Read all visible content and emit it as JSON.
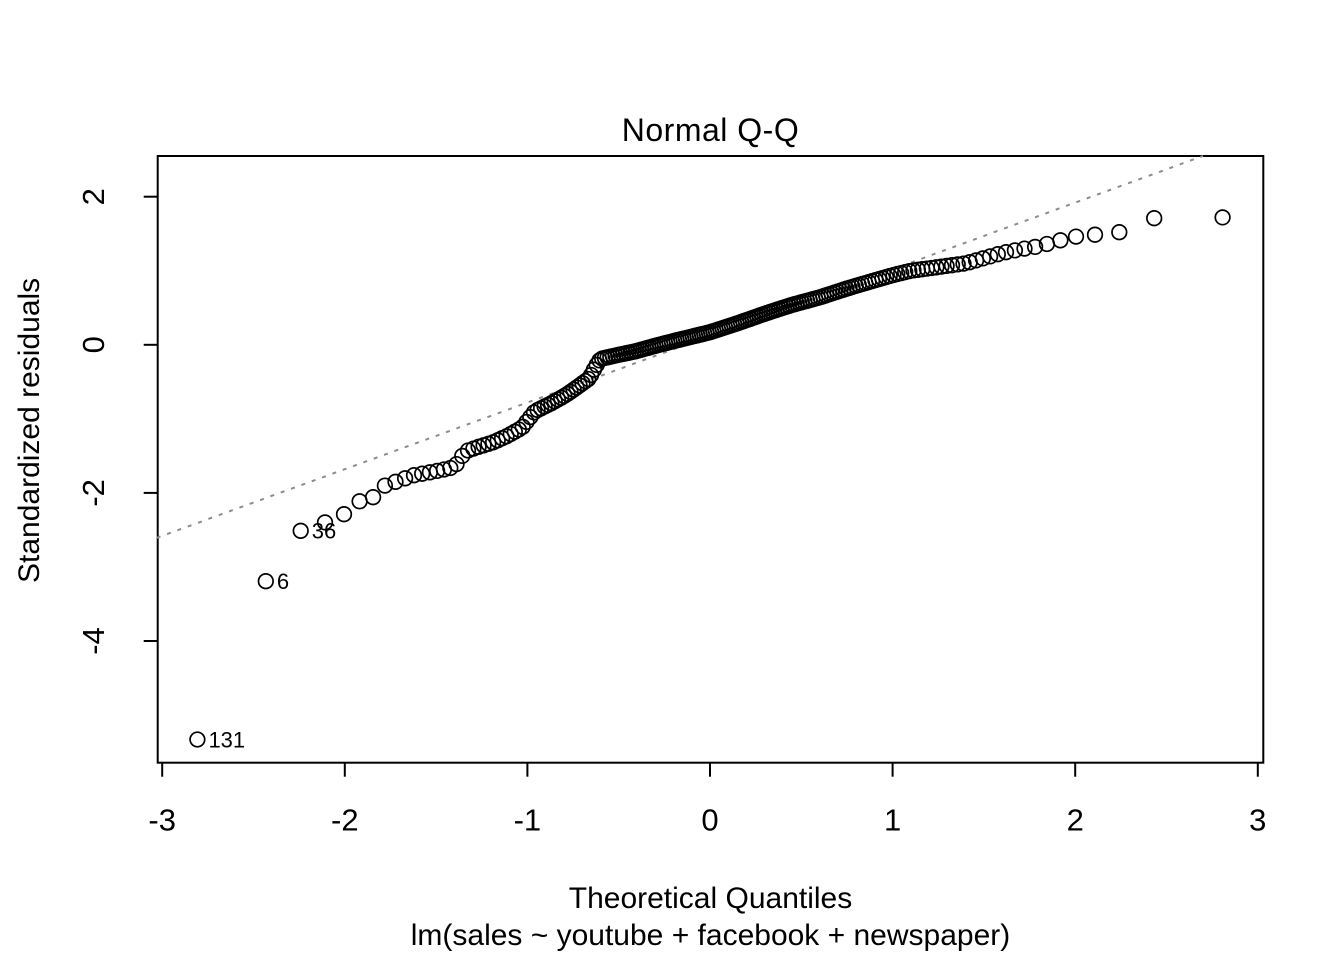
{
  "chart_data": {
    "type": "scatter",
    "title": "Normal Q-Q",
    "xlabel": "Theoretical Quantiles",
    "ylabel": "Standardized residuals",
    "model_caption": "lm(sales ~ youtube + facebook + newspaper)",
    "x_axis": {
      "ticks": [
        -3,
        -2,
        -1,
        0,
        1,
        2,
        3
      ],
      "range": [
        -3.03,
        3.03
      ]
    },
    "y_axis": {
      "ticks": [
        2,
        0,
        -2,
        -4
      ],
      "range": [
        -5.64,
        2.55
      ]
    },
    "grid": false,
    "legend": null,
    "n_points": 200,
    "sample_rule": "x_i = qnorm((i - 0.5)/200) for i = 1..200; y_i = linear interpolation of quantile_curve at x_i",
    "quantile_curve": [
      [
        -2.807,
        -5.33
      ],
      [
        -2.432,
        -3.19
      ],
      [
        -2.241,
        -2.51
      ],
      [
        -2.17,
        -2.46
      ],
      [
        -2.1,
        -2.39
      ],
      [
        -2.01,
        -2.3
      ],
      [
        -1.93,
        -2.12
      ],
      [
        -1.85,
        -2.07
      ],
      [
        -1.78,
        -1.9
      ],
      [
        -1.7,
        -1.83
      ],
      [
        -1.62,
        -1.76
      ],
      [
        -1.53,
        -1.72
      ],
      [
        -1.45,
        -1.68
      ],
      [
        -1.4,
        -1.65
      ],
      [
        -1.37,
        -1.55
      ],
      [
        -1.34,
        -1.44
      ],
      [
        -1.27,
        -1.38
      ],
      [
        -1.19,
        -1.32
      ],
      [
        -1.11,
        -1.23
      ],
      [
        -1.03,
        -1.12
      ],
      [
        -0.96,
        -0.9
      ],
      [
        -0.87,
        -0.79
      ],
      [
        -0.79,
        -0.68
      ],
      [
        -0.71,
        -0.54
      ],
      [
        -0.66,
        -0.45
      ],
      [
        -0.63,
        -0.31
      ],
      [
        -0.6,
        -0.19
      ],
      [
        -0.51,
        -0.14
      ],
      [
        -0.41,
        -0.09
      ],
      [
        -0.31,
        -0.02
      ],
      [
        -0.2,
        0.05
      ],
      [
        -0.1,
        0.11
      ],
      [
        0.0,
        0.17
      ],
      [
        0.15,
        0.29
      ],
      [
        0.3,
        0.42
      ],
      [
        0.45,
        0.54
      ],
      [
        0.6,
        0.64
      ],
      [
        0.75,
        0.76
      ],
      [
        0.9,
        0.87
      ],
      [
        1.0,
        0.94
      ],
      [
        1.1,
        1.0
      ],
      [
        1.25,
        1.05
      ],
      [
        1.4,
        1.1
      ],
      [
        1.5,
        1.17
      ],
      [
        1.6,
        1.24
      ],
      [
        1.7,
        1.29
      ],
      [
        1.8,
        1.33
      ],
      [
        1.9,
        1.4
      ],
      [
        2.0,
        1.46
      ],
      [
        2.12,
        1.49
      ],
      [
        2.24,
        1.52
      ],
      [
        2.35,
        1.56
      ],
      [
        2.432,
        1.71
      ],
      [
        2.807,
        1.72
      ]
    ],
    "labeled_outliers": [
      {
        "label": "131",
        "x": -2.807,
        "y": -5.33
      },
      {
        "label": "6",
        "x": -2.432,
        "y": -3.19
      },
      {
        "label": "36",
        "x": -2.241,
        "y": -2.51
      }
    ],
    "reference_line": {
      "slope": 0.9,
      "intercept": 0.12,
      "style": "dotted",
      "color": "#8c8c8c"
    },
    "point_style": {
      "marker": "open-circle",
      "color": "#000000"
    }
  },
  "frame": {
    "background": "#ffffff",
    "axis_color": "#000000"
  }
}
